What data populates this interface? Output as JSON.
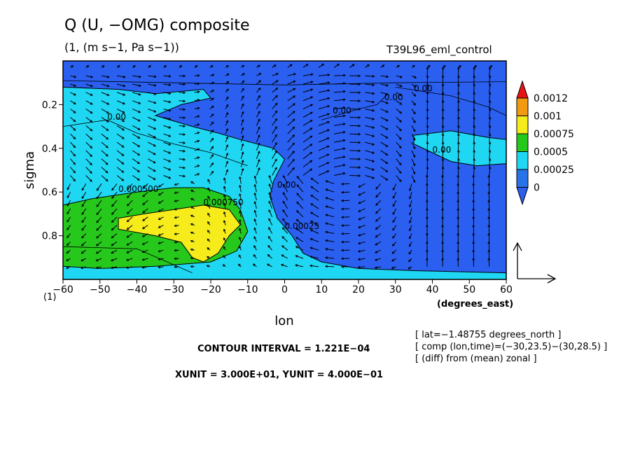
{
  "title": "Q (U, −OMG) composite",
  "units": "(1, (m s−1, Pa s−1))",
  "run_name": "T39L96_eml_control",
  "scale_factor_label": "(1)",
  "info_lines": [
    "[ lat=−1.48755 degrees_north ]",
    "[ comp (lon,time)=(−30,23.5)−(30,28.5) ]",
    "[ (diff) from (mean) zonal ]"
  ],
  "contour_interval_text": "CONTOUR INTERVAL = 1.221E−04",
  "unit_vector_text": "XUNIT = 3.000E+01, YUNIT = 4.000E−01",
  "chart_data": {
    "type": "heatmap",
    "subtype": "filled contour with vector overlay",
    "title": "Q (U, −OMG) composite",
    "xlabel": "lon",
    "xunit_label": "(degrees_east)",
    "ylabel": "sigma",
    "xlim": [
      -60,
      60
    ],
    "ylim": [
      1.0,
      0.0
    ],
    "y_inverted": true,
    "x_ticks": [
      -60,
      -50,
      -40,
      -30,
      -20,
      -10,
      0,
      10,
      20,
      30,
      40,
      50,
      60
    ],
    "x_tick_labels": [
      "−60",
      "−50",
      "−40",
      "−30",
      "−20",
      "−10",
      "0",
      "10",
      "20",
      "30",
      "40",
      "50",
      "60"
    ],
    "y_ticks": [
      0.2,
      0.4,
      0.6,
      0.8
    ],
    "colorbar": {
      "levels": [
        0,
        0.00025,
        0.0005,
        0.00075,
        0.001,
        0.0012
      ],
      "labels": [
        "0",
        "0.00025",
        "0.0005",
        "0.00075",
        "0.001",
        "0.0012"
      ],
      "colors": [
        "#2a72e8",
        "#1fd7f2",
        "#26c81c",
        "#f6ec1c",
        "#f29a12",
        "#e81414"
      ],
      "below_color": "#2a5ff0"
    },
    "field_colors": {
      "background": "#2a5ff0",
      "cyan": "#1fd7f2",
      "green": "#26c81c",
      "yellow": "#f6ec1c"
    },
    "contour_labels": [
      "0.00",
      "0.00",
      "0.00",
      "0.00",
      "0.00",
      "0.000500",
      "0.000750",
      "0.00025",
      "0.00"
    ],
    "regions": [
      {
        "level": "0.00025-0.0005",
        "outline": [
          [
            -60,
            0.12
          ],
          [
            -45,
            0.13
          ],
          [
            -35,
            0.15
          ],
          [
            -22,
            0.13
          ],
          [
            -20,
            0.17
          ],
          [
            -28,
            0.2
          ],
          [
            -35,
            0.25
          ],
          [
            -25,
            0.3
          ],
          [
            -18,
            0.33
          ],
          [
            -12,
            0.36
          ],
          [
            -3,
            0.4
          ],
          [
            0,
            0.45
          ],
          [
            -3,
            0.55
          ],
          [
            -4,
            0.62
          ],
          [
            -2,
            0.72
          ],
          [
            2,
            0.8
          ],
          [
            5,
            0.88
          ],
          [
            10,
            0.92
          ],
          [
            20,
            0.95
          ],
          [
            35,
            0.96
          ],
          [
            60,
            0.97
          ],
          [
            60,
            1.0
          ],
          [
            -60,
            1.0
          ]
        ]
      },
      {
        "level": "0.00025-0.0005",
        "outline": [
          [
            35,
            0.34
          ],
          [
            45,
            0.32
          ],
          [
            55,
            0.35
          ],
          [
            60,
            0.36
          ],
          [
            60,
            0.47
          ],
          [
            52,
            0.48
          ],
          [
            45,
            0.46
          ],
          [
            40,
            0.42
          ],
          [
            35,
            0.38
          ]
        ]
      },
      {
        "level": "0.0005-0.00075",
        "outline": [
          [
            -60,
            0.66
          ],
          [
            -52,
            0.63
          ],
          [
            -40,
            0.6
          ],
          [
            -30,
            0.58
          ],
          [
            -22,
            0.58
          ],
          [
            -15,
            0.62
          ],
          [
            -12,
            0.68
          ],
          [
            -10,
            0.78
          ],
          [
            -13,
            0.87
          ],
          [
            -20,
            0.92
          ],
          [
            -35,
            0.94
          ],
          [
            -50,
            0.95
          ],
          [
            -60,
            0.94
          ]
        ]
      },
      {
        "level": "0.00075-0.001",
        "outline": [
          [
            -45,
            0.72
          ],
          [
            -38,
            0.7
          ],
          [
            -30,
            0.68
          ],
          [
            -22,
            0.66
          ],
          [
            -15,
            0.68
          ],
          [
            -12,
            0.75
          ],
          [
            -15,
            0.8
          ],
          [
            -18,
            0.88
          ],
          [
            -22,
            0.92
          ],
          [
            -25,
            0.9
          ],
          [
            -28,
            0.83
          ],
          [
            -35,
            0.8
          ],
          [
            -45,
            0.77
          ]
        ]
      }
    ],
    "vectors": {
      "description": "wind vectors (U, −OMG) on a regular lon-sigma grid",
      "reference_vector": {
        "xunit": 30.0,
        "yunit": 0.4
      }
    }
  }
}
